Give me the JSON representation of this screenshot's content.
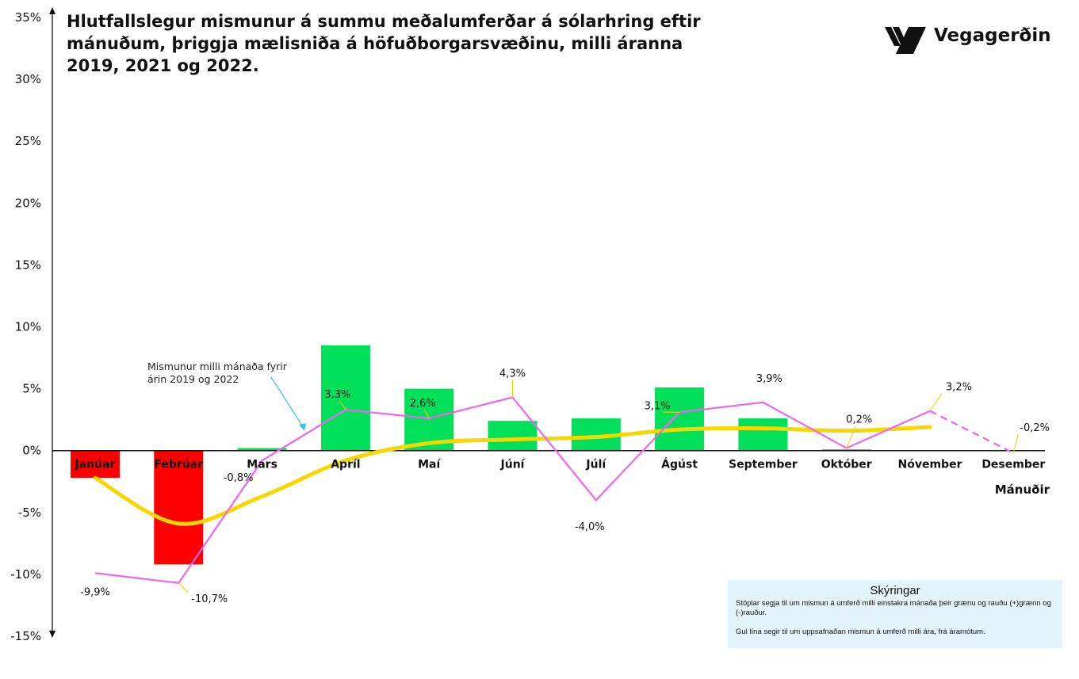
{
  "title_lines": [
    "Hlutfallslegur mismunur á summu meðalumferðar á sólarhring eftir",
    "mánuðum, þriggja mælisniða á höfuðborgarsvæðinu, milli áranna",
    "2019, 2021 og 2022."
  ],
  "logo_text": "Vegagerðin",
  "annotation_lines": [
    "Mismunur milli mánaða fyrir",
    "árin 2019 og 2022"
  ],
  "legend": {
    "title": "Skýringar",
    "line1": "Stöplar segja til um mismun á umferð milli einstakra mánaða  þeir grænu og rauðu (+)grænn og (-)rauður.",
    "line2": "Gul lína segir til um uppsafnaðan mismun á umferð milli ára, frá áramótum."
  },
  "colors": {
    "positive_bar": "#00e05a",
    "negative_bar": "#ff0000",
    "monthly_line": "#ee66ee",
    "cumulative_line": "#f5d800",
    "legend_bg": "#e4f4fb"
  },
  "chart_data": {
    "type": "bar",
    "categories": [
      "Janúar",
      "Febrúar",
      "Mars",
      "Apríl",
      "Maí",
      "Júní",
      "Júlí",
      "Ágúst",
      "September",
      "Október",
      "Nóvember",
      "Desember"
    ],
    "xlabel": "Mánuðir",
    "ylabel": "",
    "ylim": [
      -15,
      35
    ],
    "ytick_labels": [
      "35%",
      "30%",
      "25%",
      "20%",
      "15%",
      "10%",
      "5%",
      "0%",
      "-5%",
      "-10%",
      "-15%"
    ],
    "grid": false,
    "bars": [
      -2.2,
      -9.2,
      0.2,
      8.5,
      5.0,
      2.4,
      2.6,
      5.1,
      2.6,
      0.1,
      null,
      null
    ],
    "monthly_line": [
      -9.9,
      -10.7,
      -0.8,
      3.3,
      2.6,
      4.3,
      -4.0,
      3.1,
      3.9,
      0.2,
      3.2,
      -0.2
    ],
    "monthly_line_labels": [
      "-9,9%",
      "-10,7%",
      "-0,8%",
      "3,3%",
      "2,6%",
      "4,3%",
      "-4,0%",
      "3,1%",
      "3,9%",
      "0,2%",
      "3,2%",
      "-0,2%"
    ],
    "cumulative_line": [
      -2.2,
      -5.9,
      -3.7,
      -0.8,
      0.6,
      0.9,
      1.1,
      1.7,
      1.8,
      1.6,
      1.9,
      null
    ],
    "dashed_segment_last": true
  }
}
